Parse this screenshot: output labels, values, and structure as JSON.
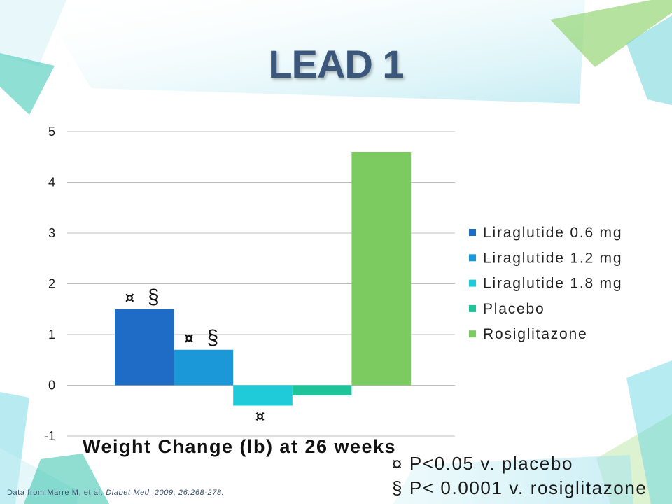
{
  "slide": {
    "title": "LEAD 1",
    "footnotes": [
      "¤ P<0.05 v. placebo",
      "§ P< 0.0001 v. rosiglitazone"
    ],
    "source": {
      "prefix": "Data from Marre M, et al.",
      "citation": "Diabet Med. 2009; 26:268-278."
    },
    "theme": {
      "title_color": "#3b587c",
      "gridline_color": "#bfbfbf"
    }
  },
  "chart_data": {
    "type": "bar",
    "categories": [
      "Weight Change (lb) at 26 weeks"
    ],
    "ylim": [
      -1,
      5
    ],
    "yticks": [
      5,
      4,
      3,
      2,
      1,
      0,
      -1
    ],
    "grid": true,
    "legend_position": "right",
    "series": [
      {
        "name": "Liraglutide 0.6 mg",
        "values": [
          1.5
        ],
        "color": "#1e6cc6",
        "annotation": [
          "¤",
          "§"
        ]
      },
      {
        "name": "Liraglutide 1.2 mg",
        "values": [
          0.7
        ],
        "color": "#1b98d8",
        "annotation": [
          "¤",
          "§"
        ]
      },
      {
        "name": "Liraglutide 1.8 mg",
        "values": [
          -0.4
        ],
        "color": "#1fcad9",
        "annotation": [
          "¤"
        ]
      },
      {
        "name": "Placebo",
        "values": [
          -0.2
        ],
        "color": "#1fc39a",
        "annotation": []
      },
      {
        "name": "Rosiglitazone",
        "values": [
          4.6
        ],
        "color": "#7ccb60",
        "annotation": []
      }
    ]
  }
}
